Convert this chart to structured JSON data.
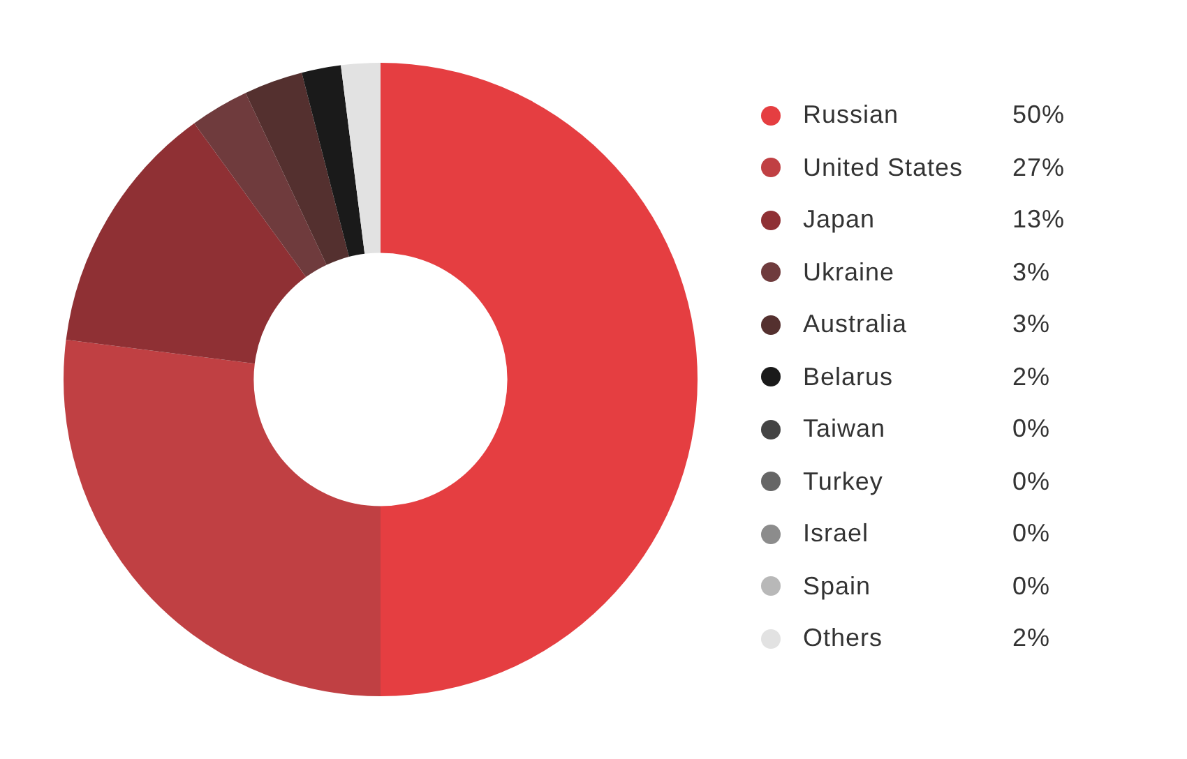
{
  "chart_data": {
    "type": "donut",
    "categories": [
      "Russian",
      "United States",
      "Japan",
      "Ukraine",
      "Australia",
      "Belarus",
      "Taiwan",
      "Turkey",
      "Israel",
      "Spain",
      "Others"
    ],
    "values": [
      50,
      27,
      13,
      3,
      3,
      2,
      0,
      0,
      0,
      0,
      2
    ],
    "value_labels": [
      "50%",
      "27%",
      "13%",
      "3%",
      "3%",
      "2%",
      "0%",
      "0%",
      "0%",
      "0%",
      "2%"
    ],
    "colors": [
      "#e53e41",
      "#c04043",
      "#8f3034",
      "#6f3b3d",
      "#54302f",
      "#1a1a1a",
      "#444444",
      "#666666",
      "#8c8c8c",
      "#b8b8b8",
      "#e2e2e2"
    ],
    "legend": "right"
  }
}
